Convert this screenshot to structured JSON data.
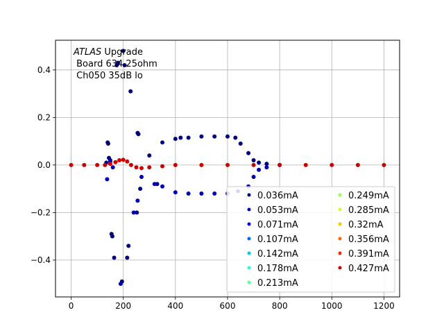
{
  "chart_data": {
    "type": "scatter",
    "title": "",
    "xlabel": "",
    "ylabel": "",
    "xlim": [
      -60,
      1260
    ],
    "ylim": [
      -0.555,
      0.525
    ],
    "xticks": [
      0,
      200,
      400,
      600,
      800,
      1000,
      1200
    ],
    "yticks": [
      -0.4,
      -0.2,
      0.0,
      0.2,
      0.4
    ],
    "xtick_labels": [
      "0",
      "200",
      "400",
      "600",
      "800",
      "1000",
      "1200"
    ],
    "ytick_labels": [
      "−0.4",
      "−0.2",
      "0.0",
      "0.2",
      "0.4"
    ],
    "grid": true,
    "legend_position": "lower-right",
    "legend_columns": 2,
    "annotation": {
      "italic": "ATLAS",
      "line1_rest": " Upgrade",
      "line2": " Board 634 25ohm",
      "line3": " Ch050 35dB lo"
    },
    "series": [
      {
        "name": "0.036mA",
        "color": "#00007f",
        "points": [
          [
            135,
            0.01
          ],
          [
            140,
            0.095
          ],
          [
            142,
            0.09
          ],
          [
            145,
            0.03
          ],
          [
            150,
            0.02
          ],
          [
            155,
            -0.29
          ],
          [
            158,
            -0.3
          ],
          [
            165,
            -0.39
          ],
          [
            175,
            0.42
          ],
          [
            180,
            0.43
          ],
          [
            195,
            -0.49
          ],
          [
            200,
            0.48
          ],
          [
            205,
            0.42
          ],
          [
            215,
            -0.39
          ],
          [
            220,
            -0.34
          ],
          [
            228,
            0.31
          ],
          [
            252,
            -0.2
          ],
          [
            255,
            0.135
          ],
          [
            258,
            0.13
          ],
          [
            265,
            -0.1
          ],
          [
            300,
            0.04
          ],
          [
            330,
            -0.08
          ],
          [
            350,
            0.095
          ],
          [
            400,
            0.11
          ],
          [
            420,
            0.115
          ],
          [
            450,
            0.115
          ],
          [
            500,
            0.12
          ],
          [
            550,
            0.12
          ],
          [
            600,
            0.12
          ],
          [
            630,
            0.115
          ],
          [
            650,
            0.09
          ],
          [
            680,
            0.05
          ],
          [
            700,
            0.02
          ],
          [
            720,
            0.01
          ],
          [
            750,
            0.005
          ]
        ]
      },
      {
        "name": "0.053mA",
        "color": "#0000b8",
        "points": [
          [
            138,
            -0.06
          ],
          [
            150,
            0.015
          ],
          [
            160,
            -0.01
          ],
          [
            190,
            -0.5
          ],
          [
            240,
            -0.2
          ],
          [
            255,
            -0.15
          ],
          [
            270,
            -0.05
          ],
          [
            320,
            -0.08
          ],
          [
            350,
            -0.09
          ],
          [
            400,
            -0.115
          ],
          [
            450,
            -0.12
          ],
          [
            500,
            -0.12
          ],
          [
            550,
            -0.12
          ],
          [
            600,
            -0.12
          ],
          [
            640,
            -0.11
          ],
          [
            680,
            -0.09
          ],
          [
            700,
            -0.05
          ],
          [
            720,
            -0.02
          ],
          [
            750,
            -0.01
          ],
          [
            800,
            0.0
          ]
        ]
      },
      {
        "name": "0.071mA",
        "color": "#0000ff",
        "points": []
      },
      {
        "name": "0.107mA",
        "color": "#0066ff",
        "points": []
      },
      {
        "name": "0.142mA",
        "color": "#00c8ff",
        "points": []
      },
      {
        "name": "0.178mA",
        "color": "#26ffd0",
        "points": []
      },
      {
        "name": "0.213mA",
        "color": "#5cff9a",
        "points": []
      },
      {
        "name": "0.249mA",
        "color": "#9aff5c",
        "points": []
      },
      {
        "name": "0.285mA",
        "color": "#d0ff26",
        "points": []
      },
      {
        "name": "0.32mA",
        "color": "#ffc400",
        "points": []
      },
      {
        "name": "0.356mA",
        "color": "#ff6800",
        "points": []
      },
      {
        "name": "0.391mA",
        "color": "#ff2400",
        "points": []
      },
      {
        "name": "0.427mA",
        "color": "#cc0000",
        "points": [
          [
            0,
            0.0
          ],
          [
            50,
            0.0
          ],
          [
            100,
            0.0
          ],
          [
            130,
            0.0
          ],
          [
            150,
            0.005
          ],
          [
            170,
            0.012
          ],
          [
            185,
            0.02
          ],
          [
            200,
            0.022
          ],
          [
            215,
            0.015
          ],
          [
            230,
            0.0
          ],
          [
            250,
            -0.01
          ],
          [
            270,
            -0.013
          ],
          [
            300,
            -0.01
          ],
          [
            350,
            -0.005
          ],
          [
            400,
            0.0
          ],
          [
            500,
            0.0
          ],
          [
            600,
            0.0
          ],
          [
            700,
            0.0
          ],
          [
            800,
            0.0
          ],
          [
            900,
            0.0
          ],
          [
            1000,
            0.0
          ],
          [
            1100,
            0.0
          ],
          [
            1200,
            0.0
          ]
        ]
      }
    ]
  }
}
